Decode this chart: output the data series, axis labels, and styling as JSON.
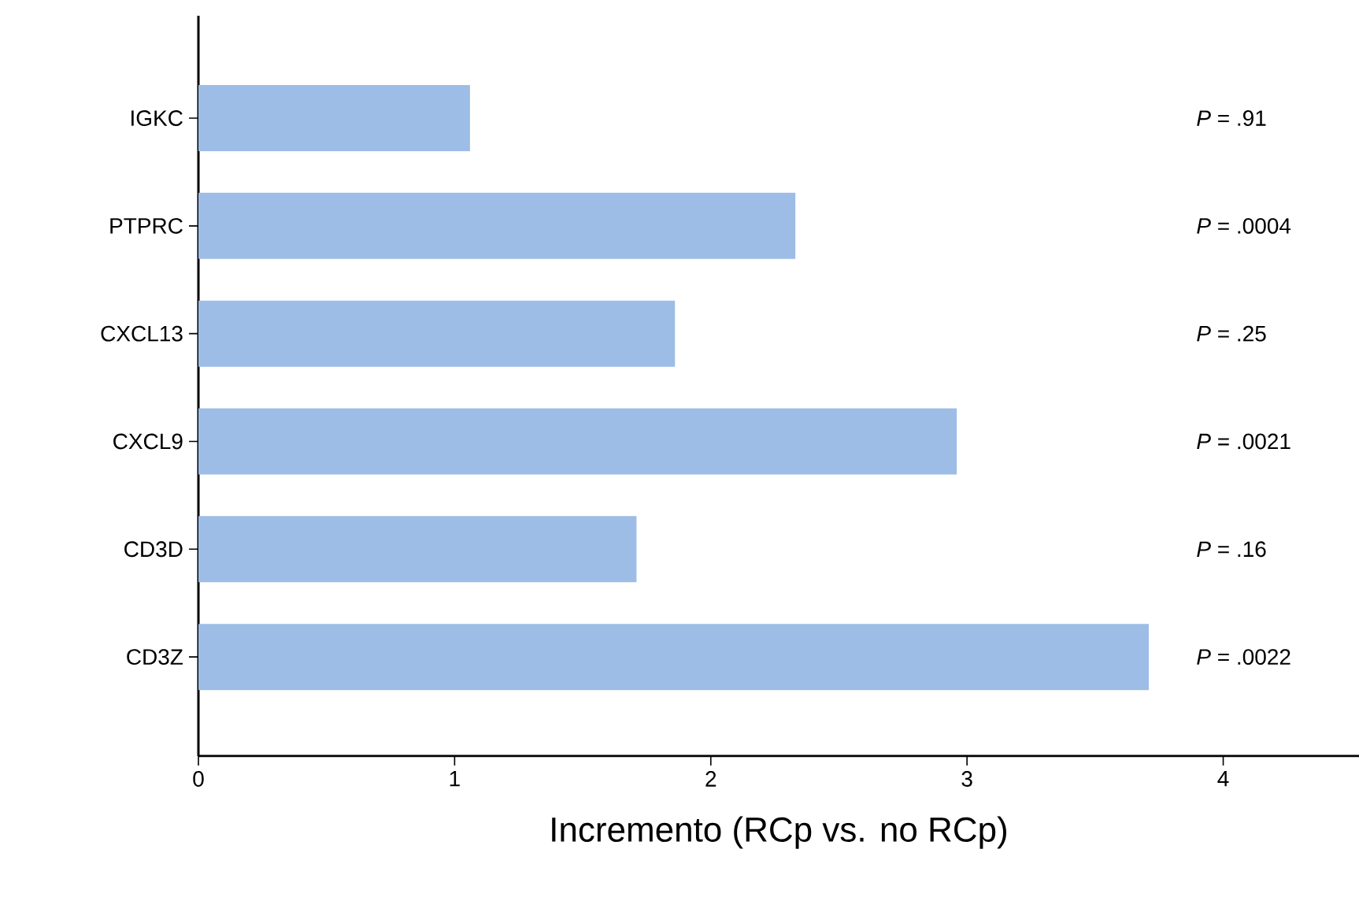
{
  "chart_data": {
    "type": "bar",
    "orientation": "horizontal",
    "xlabel": "Incremento (RCp vs. no RCp)",
    "categories": [
      "IGKC",
      "PTPRC",
      "CXCL13",
      "CXCL9",
      "CD3D",
      "CD3Z"
    ],
    "values": [
      1.06,
      2.33,
      1.86,
      2.96,
      1.71,
      3.71
    ],
    "color": "#9dbde6",
    "xlim": [
      0,
      4.53
    ],
    "xticks": [
      0,
      1,
      2,
      3,
      4
    ],
    "grid": false,
    "annotations": [
      "*P* = .91",
      "*P* = .0004",
      "*P* = .25",
      "*P* = .0021",
      "*P* = .16",
      "*P* = .0022"
    ]
  }
}
